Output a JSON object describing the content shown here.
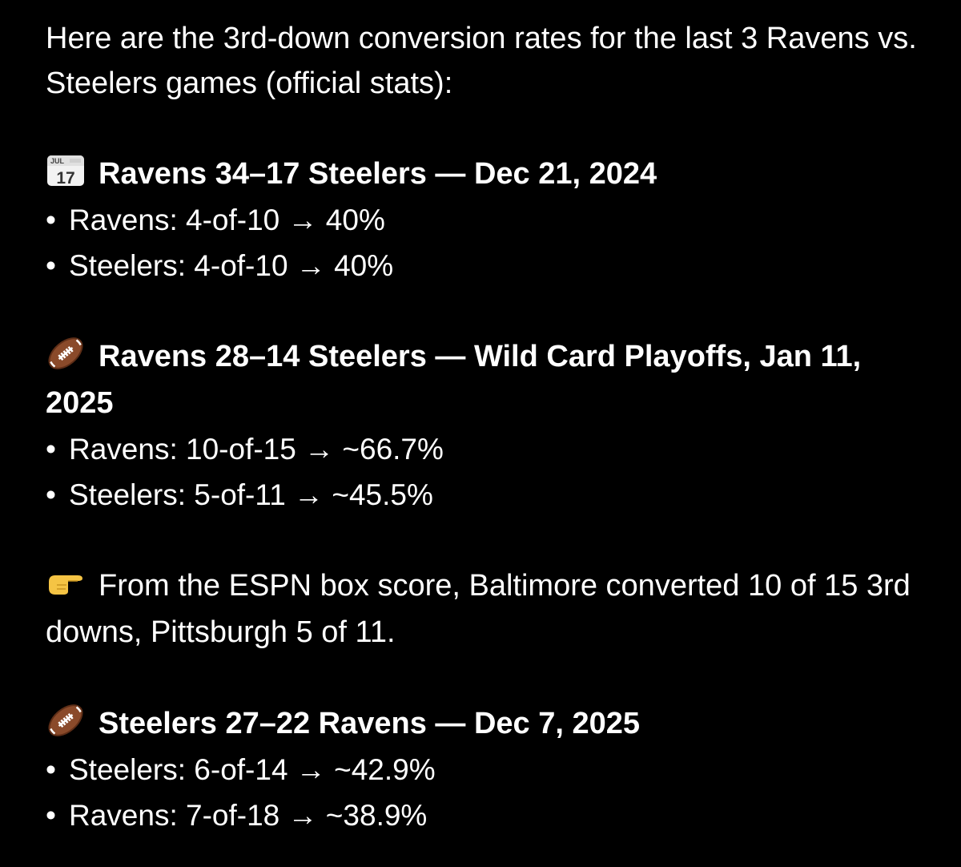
{
  "intro": "Here are the 3rd-down conversion rates for the last 3 Ravens vs. Steelers games (official stats):",
  "games": [
    {
      "icon": "calendar-icon",
      "heading": "Ravens 34–17 Steelers — Dec 21, 2024",
      "calendar_month": "JUL",
      "calendar_day": "17",
      "lines": [
        "Ravens: 4-of-10 → 40%",
        "Steelers: 4-of-10 → 40%"
      ]
    },
    {
      "icon": "football-icon",
      "heading": "Ravens 28–14 Steelers — Wild Card Playoffs, Jan 11, 2025",
      "lines": [
        "Ravens: 10-of-15 → ~66.7%",
        "Steelers: 5-of-11 → ~45.5%"
      ]
    },
    {
      "icon": "football-icon",
      "heading": "Steelers 27–22 Ravens — Dec 7, 2025",
      "lines": [
        "Steelers: 6-of-14 → ~42.9%",
        "Ravens: 7-of-18 → ~38.9%"
      ]
    }
  ],
  "note": {
    "icon": "pointing-hand-icon",
    "text": "From the ESPN box score, Baltimore converted 10 of 15 3rd downs, Pittsburgh 5 of 11."
  },
  "bullet_char": "•",
  "colors": {
    "background": "#000000",
    "text": "#ffffff"
  }
}
